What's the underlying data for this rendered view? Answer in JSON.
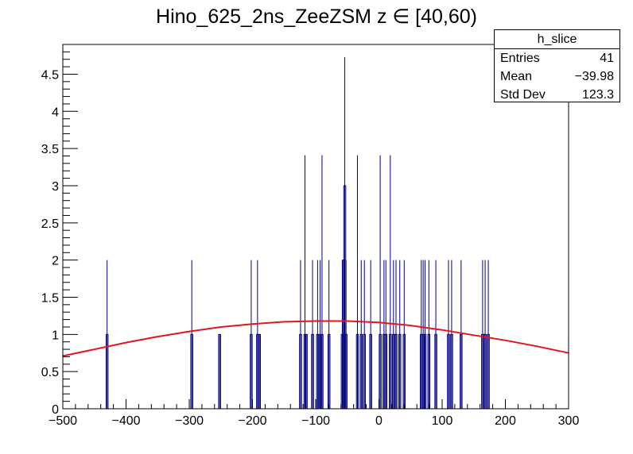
{
  "chart_data": {
    "type": "bar",
    "title": "Hino_625_2ns_ZeeZSM z  ∈ [40,60)",
    "xlim": [
      -500,
      300
    ],
    "ylim": [
      0,
      4.9
    ],
    "x_ticks": [
      -500,
      -400,
      -300,
      -200,
      -100,
      0,
      100,
      200,
      300
    ],
    "x_tick_labels": [
      "−500",
      "−400",
      "−300",
      "−200",
      "−100",
      "0",
      "100",
      "200",
      "300"
    ],
    "y_ticks": [
      0,
      0.5,
      1,
      1.5,
      2,
      2.5,
      3,
      3.5,
      4,
      4.5
    ],
    "y_tick_labels": [
      "0",
      "0.5",
      "1",
      "1.5",
      "2",
      "2.5",
      "3",
      "3.5",
      "4",
      "4.5"
    ],
    "hist_color": "#000080",
    "fit_color": "#e8141b",
    "hist": {
      "x": [
        -430,
        -296,
        -252,
        -202,
        -192,
        -189,
        -124,
        -117,
        -115,
        -105,
        -97,
        -93,
        -90,
        -79,
        -58,
        -56,
        -54,
        -52,
        -34,
        -28,
        -23,
        -13,
        2,
        8,
        11,
        18,
        23,
        27,
        33,
        40,
        67,
        70,
        73,
        79,
        90,
        110,
        115,
        130,
        164,
        168,
        173
      ],
      "y": [
        1,
        1,
        1,
        1,
        1,
        1,
        1,
        1,
        1,
        1,
        1,
        1,
        1,
        1,
        1,
        2,
        3,
        1,
        1,
        1,
        1,
        1,
        1,
        1,
        1,
        1,
        1,
        1,
        1,
        1,
        1,
        1,
        1,
        1,
        1,
        1,
        1,
        1,
        1,
        1,
        1
      ],
      "y_error": [
        2,
        2,
        1,
        2,
        2,
        1,
        2,
        3.41,
        1,
        2,
        2,
        2,
        3.41,
        2,
        2,
        2,
        4.73,
        2,
        3.41,
        2,
        2,
        2,
        3.41,
        2,
        2,
        3.41,
        2,
        2,
        2,
        2,
        2,
        2,
        2,
        2,
        2,
        2,
        2,
        2,
        2,
        2,
        2
      ]
    },
    "fit": {
      "x": [
        -500,
        -450,
        -400,
        -350,
        -300,
        -250,
        -200,
        -150,
        -100,
        -50,
        0,
        50,
        100,
        150,
        200,
        250,
        300
      ],
      "y": [
        0.71,
        0.8,
        0.89,
        0.97,
        1.04,
        1.1,
        1.14,
        1.17,
        1.18,
        1.18,
        1.16,
        1.12,
        1.06,
        0.99,
        0.92,
        0.84,
        0.75
      ]
    },
    "stats": {
      "name": "h_slice",
      "entries_label": "Entries",
      "entries_value": "41",
      "mean_label": "Mean",
      "mean_value": "−39.98",
      "stddev_label": "Std Dev",
      "stddev_value": "123.3"
    }
  }
}
